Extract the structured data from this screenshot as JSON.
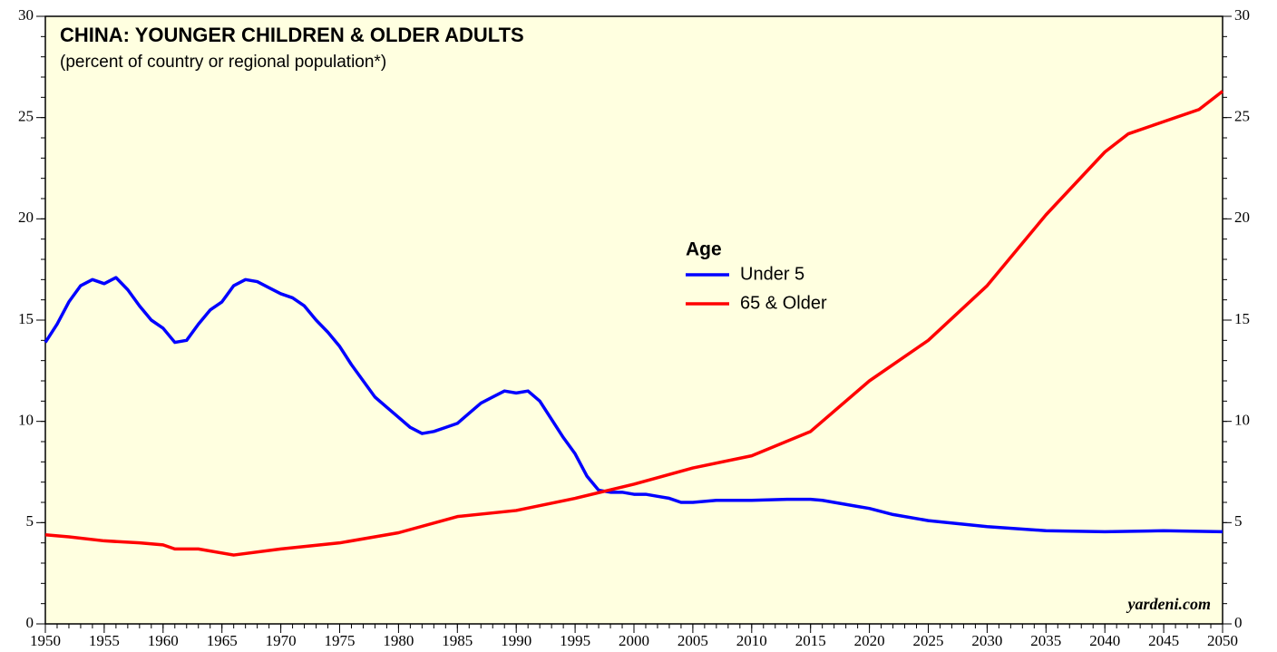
{
  "chart_data": {
    "type": "line",
    "title": "CHINA: YOUNGER CHILDREN & OLDER ADULTS",
    "subtitle": "(percent of country or regional population*)",
    "legend_title": "Age",
    "source": "yardeni.com",
    "xlim": [
      1950,
      2050
    ],
    "xticks": [
      1950,
      1955,
      1960,
      1965,
      1970,
      1975,
      1980,
      1985,
      1990,
      1995,
      2000,
      2005,
      2010,
      2015,
      2020,
      2025,
      2030,
      2035,
      2040,
      2045,
      2050
    ],
    "ylim": [
      0,
      30
    ],
    "yticks": [
      0,
      5,
      10,
      15,
      20,
      25,
      30
    ],
    "y2lim": [
      0,
      30
    ],
    "y2ticks": [
      0,
      5,
      10,
      15,
      20,
      25,
      30
    ],
    "series": [
      {
        "name": "Under 5",
        "color": "#0000ff",
        "x": [
          1950,
          1951,
          1952,
          1953,
          1954,
          1955,
          1956,
          1957,
          1958,
          1959,
          1960,
          1961,
          1962,
          1963,
          1964,
          1965,
          1966,
          1967,
          1968,
          1969,
          1970,
          1971,
          1972,
          1973,
          1974,
          1975,
          1976,
          1977,
          1978,
          1979,
          1980,
          1981,
          1982,
          1983,
          1984,
          1985,
          1986,
          1987,
          1988,
          1989,
          1990,
          1991,
          1992,
          1993,
          1994,
          1995,
          1996,
          1997,
          1998,
          1999,
          2000,
          2001,
          2002,
          2003,
          2004,
          2005,
          2007,
          2010,
          2013,
          2015,
          2016,
          2017,
          2018,
          2019,
          2020,
          2022,
          2025,
          2030,
          2035,
          2040,
          2045,
          2050
        ],
        "values": [
          13.9,
          14.8,
          15.9,
          16.7,
          17.0,
          16.8,
          17.1,
          16.5,
          15.7,
          15.0,
          14.6,
          13.9,
          14.0,
          14.8,
          15.5,
          15.9,
          16.7,
          17.0,
          16.9,
          16.6,
          16.3,
          16.1,
          15.7,
          15.0,
          14.4,
          13.7,
          12.8,
          12.0,
          11.2,
          10.7,
          10.2,
          9.7,
          9.4,
          9.5,
          9.7,
          9.9,
          10.4,
          10.9,
          11.2,
          11.5,
          11.4,
          11.5,
          11.0,
          10.1,
          9.2,
          8.4,
          7.3,
          6.6,
          6.5,
          6.5,
          6.4,
          6.4,
          6.3,
          6.2,
          6.0,
          6.0,
          6.1,
          6.1,
          6.15,
          6.15,
          6.1,
          6.0,
          5.9,
          5.8,
          5.7,
          5.4,
          5.1,
          4.8,
          4.6,
          4.55,
          4.6,
          4.55
        ]
      },
      {
        "name": "65 & Older",
        "color": "#ff0000",
        "x": [
          1950,
          1952,
          1955,
          1958,
          1960,
          1961,
          1963,
          1966,
          1970,
          1975,
          1980,
          1985,
          1990,
          1995,
          2000,
          2005,
          2010,
          2015,
          2020,
          2025,
          2030,
          2035,
          2040,
          2042,
          2045,
          2048,
          2050
        ],
        "values": [
          4.4,
          4.3,
          4.1,
          4.0,
          3.9,
          3.7,
          3.7,
          3.4,
          3.7,
          4.0,
          4.5,
          5.3,
          5.6,
          6.2,
          6.9,
          7.7,
          8.3,
          9.5,
          12.0,
          14.0,
          16.7,
          20.2,
          23.3,
          24.2,
          24.8,
          25.4,
          26.3
        ]
      }
    ]
  }
}
